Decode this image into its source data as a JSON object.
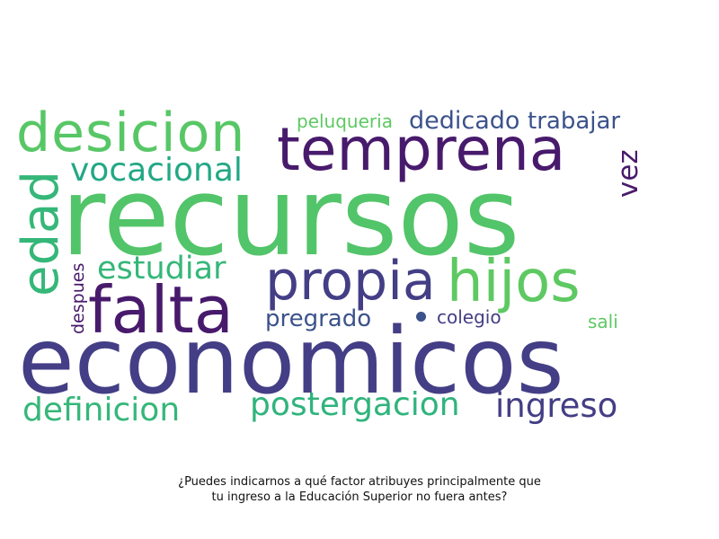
{
  "wordcloud": {
    "words": [
      {
        "text": "recursos",
        "color": "#52c469"
      },
      {
        "text": "economicos",
        "color": "#433e85"
      },
      {
        "text": "temprena",
        "color": "#481a6c"
      },
      {
        "text": "falta",
        "color": "#481a6c"
      },
      {
        "text": "desicion",
        "color": "#57c766"
      },
      {
        "text": "propia",
        "color": "#433e85"
      },
      {
        "text": "hijos",
        "color": "#5ec962"
      },
      {
        "text": "edad",
        "color": "#35b779"
      },
      {
        "text": "vocacional",
        "color": "#22a884"
      },
      {
        "text": "estudiar",
        "color": "#35b779"
      },
      {
        "text": "definicion",
        "color": "#35b779"
      },
      {
        "text": "postergacion",
        "color": "#2fb47c"
      },
      {
        "text": "ingreso",
        "color": "#433e85"
      },
      {
        "text": "pregrado",
        "color": "#3b528b"
      },
      {
        "text": "trabajar",
        "color": "#3b528b"
      },
      {
        "text": "dedicado",
        "color": "#3b528b"
      },
      {
        "text": "peluqueria",
        "color": "#5ec962"
      },
      {
        "text": "vez",
        "color": "#481a6c"
      },
      {
        "text": "despues",
        "color": "#481a6c"
      },
      {
        "text": "colegio",
        "color": "#433e85"
      },
      {
        "text": "sali",
        "color": "#5ec962"
      }
    ],
    "dot_color": "#3b528b"
  },
  "caption": {
    "line1": "¿Puedes indicarnos a qué factor atribuyes principalmente que",
    "line2": "tu ingreso a la Educación Superior no fuera antes?"
  }
}
